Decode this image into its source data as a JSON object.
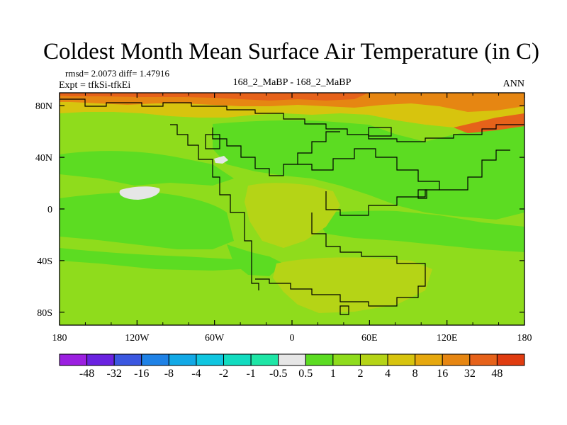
{
  "chart_data": {
    "type": "heatmap",
    "title": "Coldest Month Mean Surface Air Temperature (in C)",
    "stats": "rmsd= 2.0073 diff= 1.47916",
    "experiment": "Expt = tfkSi-tfkEi",
    "center_label": "168_2_MaBP - 168_2_MaBP",
    "period": "ANN",
    "x_range": [
      -180,
      180
    ],
    "y_range": [
      -90,
      90
    ],
    "x_ticks": [
      {
        "value": -180,
        "label": "180"
      },
      {
        "value": -120,
        "label": "120W"
      },
      {
        "value": -60,
        "label": "60W"
      },
      {
        "value": 0,
        "label": "0"
      },
      {
        "value": 60,
        "label": "60E"
      },
      {
        "value": 120,
        "label": "120E"
      },
      {
        "value": 180,
        "label": "180"
      }
    ],
    "y_ticks": [
      {
        "value": 80,
        "label": "80N"
      },
      {
        "value": 40,
        "label": "40N"
      },
      {
        "value": 0,
        "label": "0"
      },
      {
        "value": -40,
        "label": "40S"
      },
      {
        "value": -80,
        "label": "80S"
      }
    ],
    "colorbar": {
      "colors": [
        "#9b1fe0",
        "#6a22e0",
        "#3b57e0",
        "#1f82e6",
        "#12a9e6",
        "#10c6e0",
        "#12dcc0",
        "#1ee6a6",
        "#e6e6e6",
        "#5cdc22",
        "#8fdc1c",
        "#b5d416",
        "#d7c40e",
        "#e6a80e",
        "#e68612",
        "#e6621a",
        "#e03c10"
      ],
      "labels": [
        "-48",
        "-32",
        "-16",
        "-8",
        "-4",
        "-2",
        "-1",
        "-0.5",
        "0.5",
        "1",
        "2",
        "4",
        "8",
        "16",
        "32",
        "48"
      ]
    },
    "field_regions": [
      {
        "name": "background",
        "level": 2,
        "color": "#8fdc1c"
      },
      {
        "name": "north-pacific-band",
        "level": 1,
        "color": "#5cdc22"
      },
      {
        "name": "east-pacific-equatorial",
        "level": 1,
        "color": "#5cdc22"
      },
      {
        "name": "southern-ocean-west",
        "level": 1,
        "color": "#5cdc22"
      },
      {
        "name": "eurasia-interior",
        "level": 1,
        "color": "#5cdc22"
      },
      {
        "name": "tethys-ocean",
        "level": 1,
        "color": "#5cdc22"
      },
      {
        "name": "africa-west-pacific",
        "level": 4,
        "color": "#b5d416"
      },
      {
        "name": "southern-continent",
        "level": 4,
        "color": "#b5d416"
      },
      {
        "name": "arctic-land",
        "level": 8,
        "color": "#d7c40e"
      },
      {
        "name": "arctic-warm",
        "level": 16,
        "color": "#e68612"
      },
      {
        "name": "arctic-hot",
        "level": 32,
        "color": "#e6621a"
      },
      {
        "name": "near-zero-patch",
        "level": 0,
        "color": "#e6e6e6"
      }
    ]
  }
}
